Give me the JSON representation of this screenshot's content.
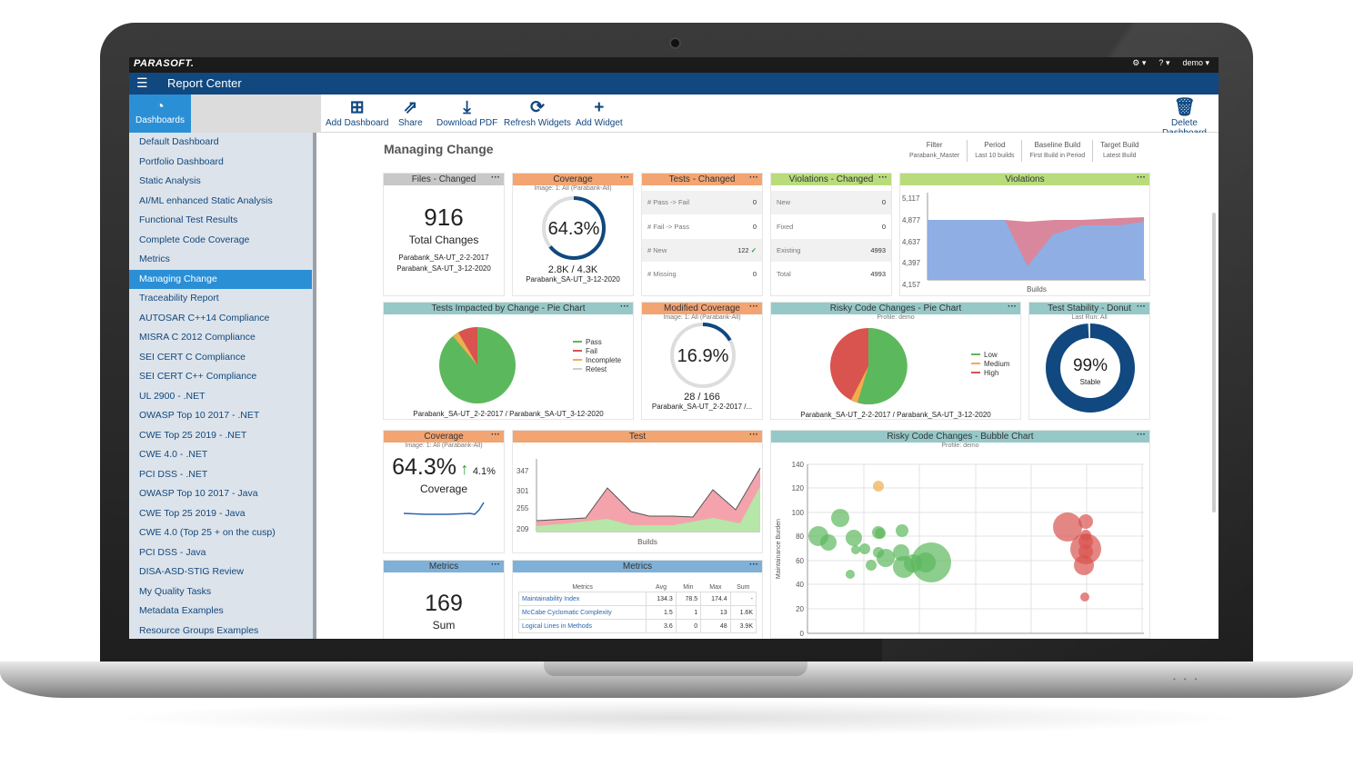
{
  "brand": "PARASOFT.",
  "topbar": {
    "settings_caret": "▾",
    "help_caret": "▾",
    "user": "demo ▾"
  },
  "app": {
    "title": "Report Center"
  },
  "toolbar": {
    "dashboards": "Dashboards",
    "add": "Add Dashboard",
    "share": "Share",
    "pdf": "Download PDF",
    "refresh": "Refresh Widgets",
    "widget": "Add Widget",
    "delete": "Delete Dashboard"
  },
  "sidebar": {
    "items": [
      {
        "label": "Default Dashboard"
      },
      {
        "label": "Portfolio Dashboard"
      },
      {
        "label": "Static Analysis"
      },
      {
        "label": "AI/ML enhanced Static Analysis"
      },
      {
        "label": "Functional Test Results"
      },
      {
        "label": "Complete Code Coverage"
      },
      {
        "label": "Metrics"
      },
      {
        "label": "Managing Change"
      },
      {
        "label": "Traceability Report"
      },
      {
        "label": "AUTOSAR C++14 Compliance"
      },
      {
        "label": "MISRA C 2012 Compliance"
      },
      {
        "label": "SEI CERT C Compliance"
      },
      {
        "label": "SEI CERT C++ Compliance"
      },
      {
        "label": "UL 2900 - .NET"
      },
      {
        "label": "OWASP Top 10 2017 - .NET"
      },
      {
        "label": "CWE Top 25 2019 - .NET"
      },
      {
        "label": "CWE 4.0 - .NET"
      },
      {
        "label": "PCI DSS - .NET"
      },
      {
        "label": "OWASP Top 10 2017 - Java"
      },
      {
        "label": "CWE Top 25 2019 - Java"
      },
      {
        "label": "CWE 4.0 (Top 25 + on the cusp)"
      },
      {
        "label": "PCI DSS - Java"
      },
      {
        "label": "DISA-ASD-STIG Review"
      },
      {
        "label": "My Quality Tasks"
      },
      {
        "label": "Metadata Examples"
      },
      {
        "label": "Resource Groups Examples"
      }
    ]
  },
  "page": {
    "title": "Managing Change"
  },
  "filters": [
    {
      "label": "Filter",
      "value": "Parabank_Master"
    },
    {
      "label": "Period",
      "value": "Last 10 builds"
    },
    {
      "label": "Baseline Build",
      "value": "First Build in Period"
    },
    {
      "label": "Target Build",
      "value": "Latest Build"
    }
  ],
  "widgets": {
    "files": {
      "title": "Files - Changed",
      "value": "916",
      "label": "Total Changes",
      "b1": "Parabank_SA-UT_2-2-2017",
      "b2": "Parabank_SA-UT_3-12-2020"
    },
    "coverage1": {
      "title": "Coverage",
      "sub": "Image: 1: All (Parabank-All)",
      "pct": "64.3%",
      "frac": 0.643,
      "ratio": "2.8K / 4.3K",
      "build": "Parabank_SA-UT_3-12-2020"
    },
    "tests": {
      "title": "Tests - Changed",
      "rows": [
        {
          "k": "# Pass -> Fail",
          "v": "0"
        },
        {
          "k": "# Fail -> Pass",
          "v": "0"
        },
        {
          "k": "# New",
          "v": "122"
        },
        {
          "k": "# Missing",
          "v": "0"
        }
      ]
    },
    "viol": {
      "title": "Violations - Changed",
      "rows": [
        {
          "k": "New",
          "v": "0"
        },
        {
          "k": "Fixed",
          "v": "0"
        },
        {
          "k": "Existing",
          "v": "4993"
        },
        {
          "k": "Total",
          "v": "4993"
        }
      ]
    },
    "violations": {
      "title": "Violations",
      "yticks": [
        "5,117",
        "4,877",
        "4,637",
        "4,397",
        "4,157"
      ],
      "xlabel": "Builds"
    },
    "pie1": {
      "title": "Tests Impacted by Change - Pie Chart",
      "legend": [
        "Pass",
        "Fail",
        "Incomplete",
        "Retest"
      ],
      "colors": [
        "#5cb85c",
        "#d9534f",
        "#f0ad4e",
        "#cccccc"
      ],
      "caption": "Parabank_SA-UT_2-2-2017 / Parabank_SA-UT_3-12-2020"
    },
    "modcov": {
      "title": "Modified Coverage",
      "sub": "Image: 1: All (Parabank-All)",
      "pct": "16.9%",
      "frac": 0.169,
      "ratio": "28 / 166",
      "build": "Parabank_SA-UT_2-2-2017 /..."
    },
    "pie2": {
      "title": "Risky Code Changes - Pie Chart",
      "sub": "Profile: demo",
      "legend": [
        "Low",
        "Medium",
        "High"
      ],
      "colors": [
        "#5cb85c",
        "#f0ad4e",
        "#d9534f"
      ],
      "caption": "Parabank_SA-UT_2-2-2017 / Parabank_SA-UT_3-12-2020"
    },
    "donut": {
      "title": "Test Stability - Donut",
      "sub": "Last Run: All",
      "pct": "99%",
      "label": "Stable",
      "frac": 0.99
    },
    "coverage2": {
      "title": "Coverage",
      "sub": "Image: 1: All (Parabank-All)",
      "pct": "64.3%",
      "delta": "4.1%",
      "label": "Coverage"
    },
    "test": {
      "title": "Test",
      "yticks": [
        "347",
        "301",
        "255",
        "209"
      ],
      "xlabel": "Builds"
    },
    "bubble": {
      "title": "Risky Code Changes - Bubble Chart",
      "sub": "Profile: demo",
      "ylabel": "Maintainance Burden",
      "yticks": [
        "140",
        "120",
        "100",
        "80",
        "60",
        "40",
        "20",
        "0"
      ]
    },
    "metrics1": {
      "title": "Metrics",
      "value": "169",
      "label": "Sum"
    },
    "metrics2": {
      "title": "Metrics",
      "headers": [
        "Metrics",
        "Avg",
        "Min",
        "Max",
        "Sum"
      ],
      "rows": [
        {
          "name": "Maintainability Index",
          "avg": "134.3",
          "min": "78.5",
          "max": "174.4",
          "sum": "-"
        },
        {
          "name": "McCabe Cyclomatic Complexity",
          "avg": "1.5",
          "min": "1",
          "max": "13",
          "sum": "1.6K"
        },
        {
          "name": "Logical Lines in Methods",
          "avg": "3.6",
          "min": "0",
          "max": "48",
          "sum": "3.9K"
        }
      ]
    }
  }
}
